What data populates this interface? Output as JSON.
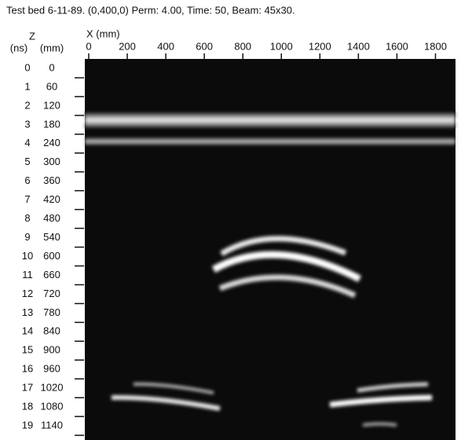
{
  "chart_data": {
    "type": "image",
    "title": "Test bed 6-11-89.  (0,400,0) Perm: 4.00, Time: 50, Beam: 45x30.",
    "x_label": "X (mm)",
    "y_label": "Z",
    "y_time_unit": "(ns)",
    "y_depth_unit": "(mm)",
    "xlim": [
      0,
      1900
    ],
    "xticks": [
      0,
      200,
      400,
      600,
      800,
      1000,
      1200,
      1400,
      1600,
      1800
    ],
    "ylim": [
      -30,
      1185
    ],
    "yticks": [
      0,
      60,
      120,
      180,
      240,
      300,
      360,
      420,
      480,
      540,
      600,
      660,
      720,
      780,
      840,
      900,
      960,
      1020,
      1080,
      1140
    ],
    "y_time_ticks": [
      0,
      1,
      2,
      3,
      4,
      5,
      6,
      7,
      8,
      9,
      10,
      11,
      12,
      13,
      14,
      15,
      16,
      17,
      18,
      19
    ]
  }
}
